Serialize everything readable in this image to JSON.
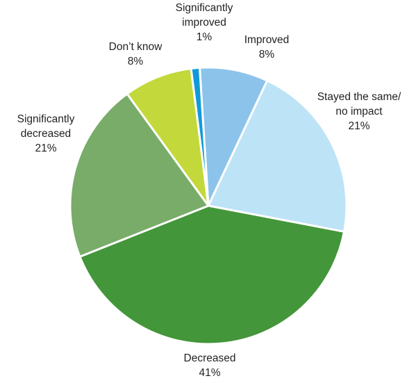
{
  "chart_data": {
    "type": "pie",
    "title": "",
    "start_angle_deg": -3.6,
    "direction": "clockwise",
    "slices": [
      {
        "label": [
          "Improved"
        ],
        "value_label": "8%",
        "value": 8,
        "color": "#8cc3ea"
      },
      {
        "label": [
          "Stayed the same/",
          "no impact"
        ],
        "value_label": "21%",
        "value": 21,
        "color": "#bde3f6"
      },
      {
        "label": [
          "Decreased"
        ],
        "value_label": "41%",
        "value": 41,
        "color": "#43963a"
      },
      {
        "label": [
          "Significantly",
          "decreased"
        ],
        "value_label": "21%",
        "value": 21,
        "color": "#78ac68"
      },
      {
        "label": [
          "Don’t know"
        ],
        "value_label": "8%",
        "value": 8,
        "color": "#c3d83a"
      },
      {
        "label": [
          "Significantly",
          "improved"
        ],
        "value_label": "1%",
        "value": 1,
        "color": "#129ad8"
      }
    ],
    "legend": "none"
  }
}
